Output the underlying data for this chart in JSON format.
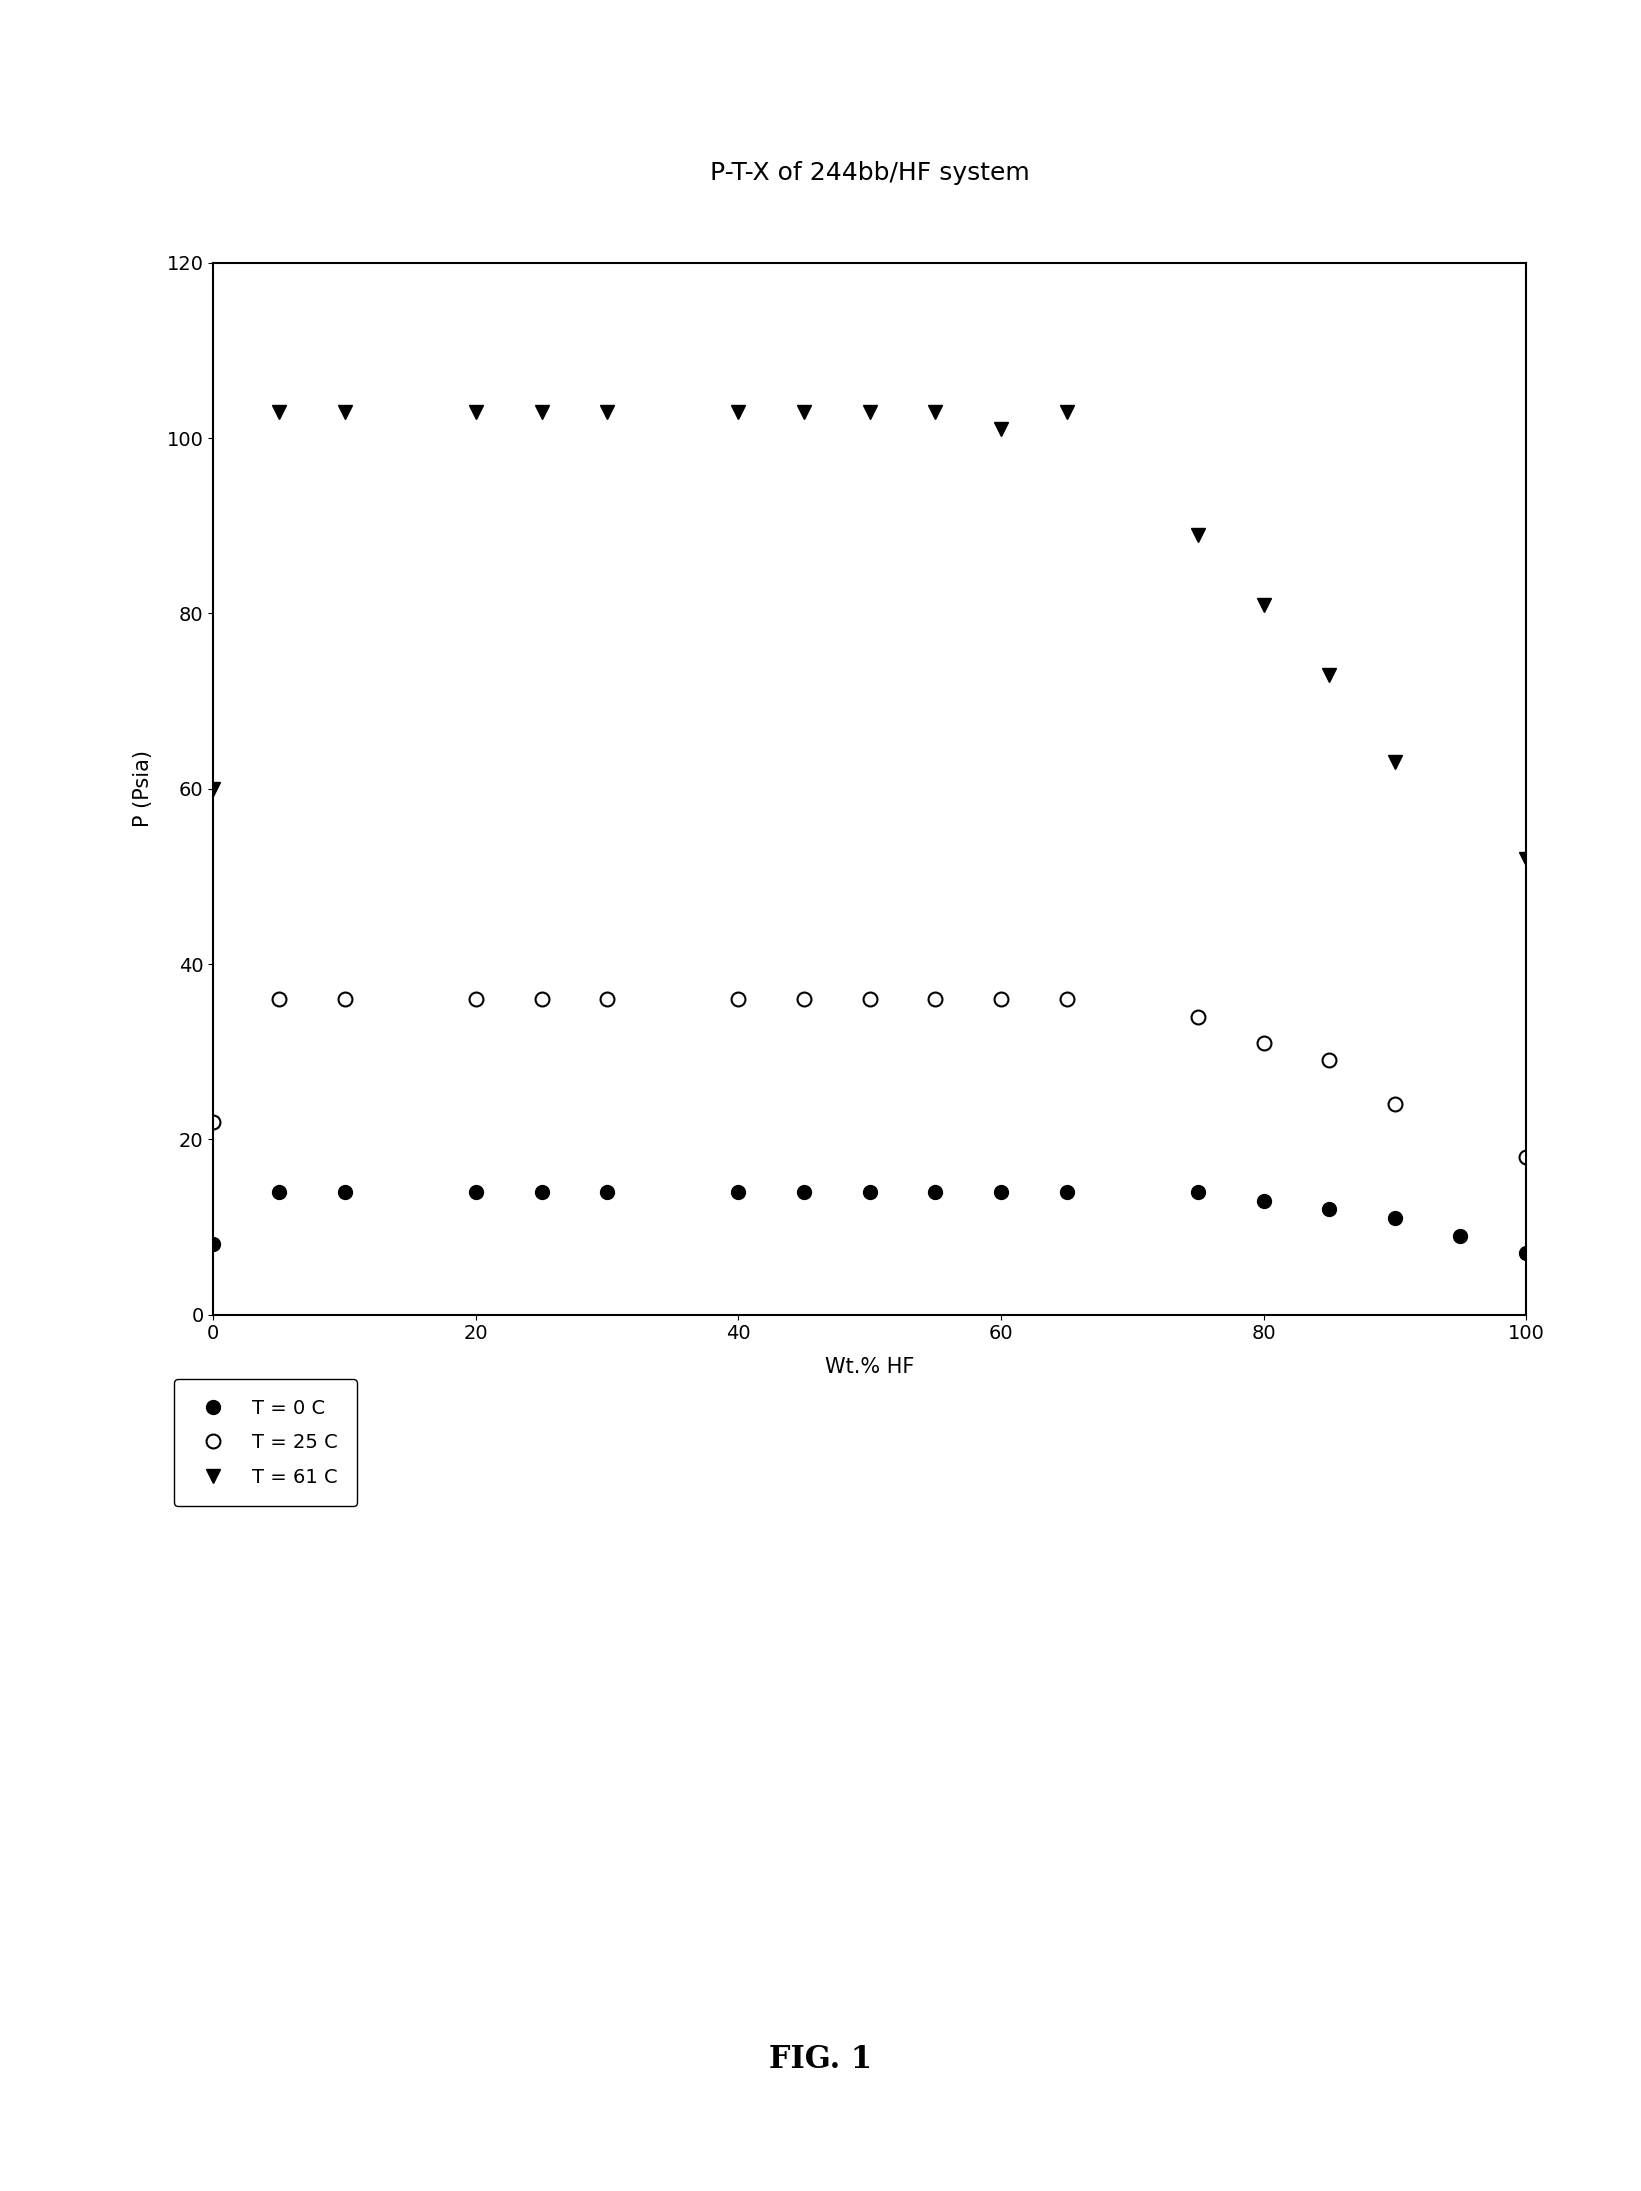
{
  "title": "P-T-X of 244bb/HF system",
  "xlabel": "Wt.% HF",
  "ylabel": "P (Psia)",
  "xlim": [
    0,
    100
  ],
  "ylim": [
    0,
    120
  ],
  "xticks": [
    0,
    20,
    40,
    60,
    80,
    100
  ],
  "yticks": [
    0,
    20,
    40,
    60,
    80,
    100,
    120
  ],
  "fig_caption": "FIG. 1",
  "T0C": {
    "x": [
      0,
      5,
      10,
      20,
      25,
      30,
      40,
      45,
      50,
      55,
      60,
      65,
      75,
      80,
      85,
      90,
      95,
      100
    ],
    "y": [
      8,
      14,
      14,
      14,
      14,
      14,
      14,
      14,
      14,
      14,
      14,
      14,
      14,
      13,
      12,
      11,
      9,
      7
    ],
    "label": "T = 0 C"
  },
  "T25C": {
    "x": [
      0,
      5,
      10,
      20,
      25,
      30,
      40,
      45,
      50,
      55,
      60,
      65,
      75,
      80,
      85,
      90,
      100
    ],
    "y": [
      22,
      36,
      36,
      36,
      36,
      36,
      36,
      36,
      36,
      36,
      36,
      36,
      34,
      31,
      29,
      24,
      18
    ],
    "label": "T = 25 C"
  },
  "T61C": {
    "x": [
      0,
      5,
      10,
      20,
      25,
      30,
      40,
      45,
      50,
      55,
      60,
      65,
      75,
      80,
      85,
      90,
      100
    ],
    "y": [
      60,
      103,
      103,
      103,
      103,
      103,
      103,
      103,
      103,
      103,
      101,
      103,
      89,
      81,
      73,
      63,
      52
    ],
    "label": "T = 61 C"
  },
  "title_fontsize": 18,
  "label_fontsize": 15,
  "tick_fontsize": 14,
  "legend_fontsize": 14,
  "marker_size": 10,
  "background_color": "#ffffff"
}
